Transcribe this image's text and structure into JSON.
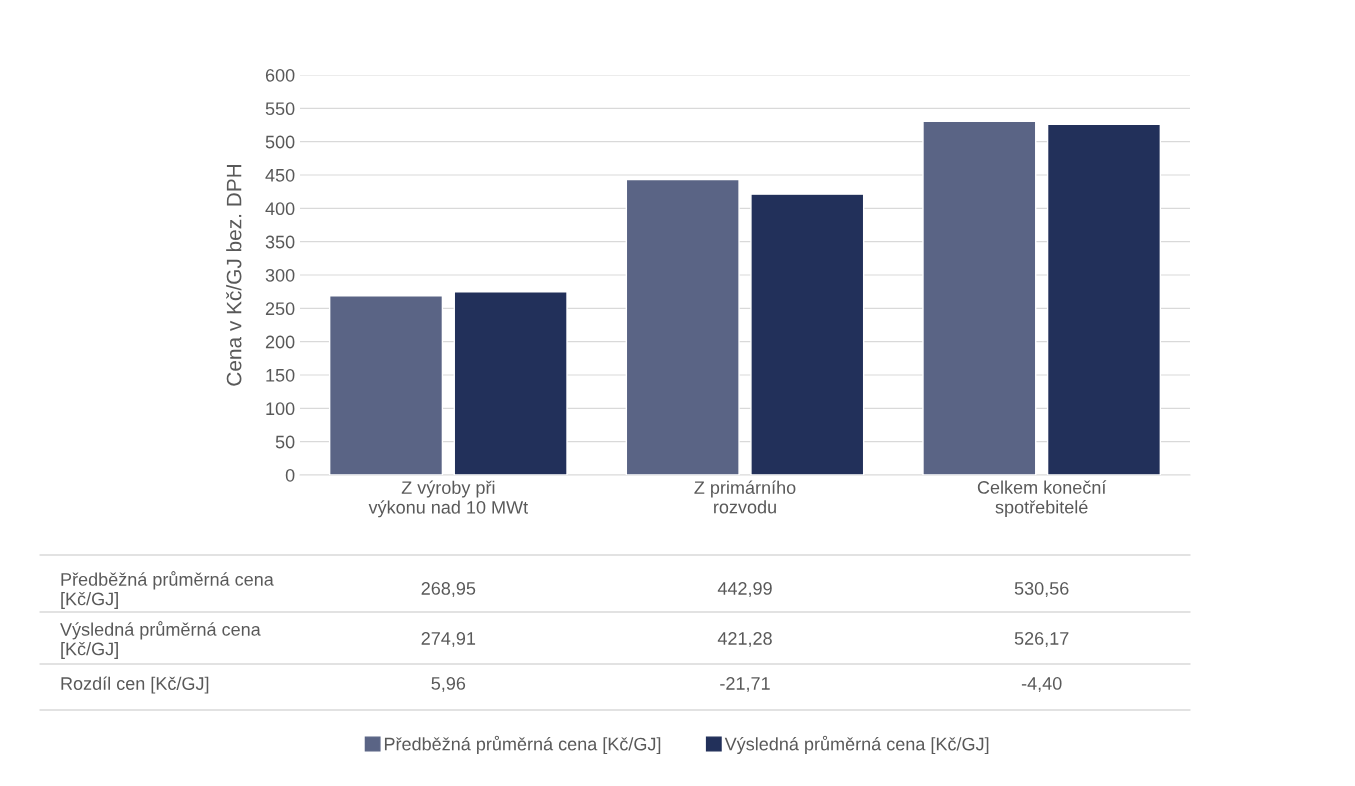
{
  "chart_data": {
    "type": "bar",
    "ylabel": "Cena v Kč/GJ bez. DPH",
    "categories": [
      "Z výroby při výkonu nad 10 MWt",
      "Z primárního rozvodu",
      "Celkem koneční spotřebitelé"
    ],
    "series": [
      {
        "name": "Předběžná průměrná cena [Kč/GJ]",
        "color": "#5a6485",
        "values": [
          268.95,
          442.99,
          530.56
        ],
        "value_labels": [
          "268,95",
          "442,99",
          "530,56"
        ]
      },
      {
        "name": "Výsledná průměrná cena [Kč/GJ]",
        "color": "#22305a",
        "values": [
          274.91,
          421.28,
          526.17
        ],
        "value_labels": [
          "274,91",
          "421,28",
          "526,17"
        ]
      }
    ],
    "annotations": [
      "Rozdíl cen [Kč/GJ]",
      "5,96",
      "-21,71",
      "-4,40"
    ],
    "ylim": [
      0,
      600
    ],
    "yticks": [
      0,
      50,
      100,
      150,
      200,
      250,
      300,
      350,
      400,
      450,
      500,
      550,
      600
    ],
    "grid": "y",
    "legend": "bottom"
  }
}
